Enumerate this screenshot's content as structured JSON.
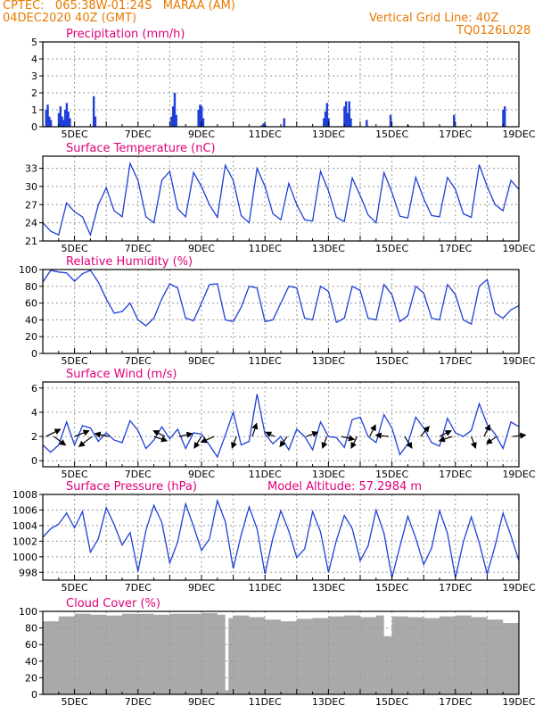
{
  "header": {
    "line1_left": "CPTEC:   065:38W-01:24S   MARAA (AM)",
    "line2_left": "04DEC2020 40Z (GMT)",
    "line2_right": "Vertical Grid Line: 40Z",
    "line3_right": "TQ0126L028"
  },
  "colors": {
    "header": "#e87a00",
    "title": "#e0007a",
    "line": "#1f3fd8",
    "bar": "#1f3fd8",
    "cloud": "#a9a9a9",
    "arrow": "#000000"
  },
  "x_tick_labels": [
    "5DEC",
    "7DEC",
    "9DEC",
    "11DEC",
    "13DEC",
    "15DEC",
    "17DEC",
    "19DEC"
  ],
  "chart_data": [
    {
      "id": "precip",
      "type": "bar",
      "title": "Precipitation (mm/h)",
      "ylim": [
        0,
        5
      ],
      "yticks": [
        0,
        1,
        2,
        3,
        4,
        5
      ],
      "x_range_days": [
        4.0,
        19.0
      ],
      "points": [
        [
          4.1,
          1.0
        ],
        [
          4.15,
          1.3
        ],
        [
          4.2,
          0.6
        ],
        [
          4.25,
          0.4
        ],
        [
          4.5,
          0.8
        ],
        [
          4.55,
          1.2
        ],
        [
          4.6,
          0.6
        ],
        [
          4.65,
          0.4
        ],
        [
          4.7,
          1.0
        ],
        [
          4.75,
          1.4
        ],
        [
          4.8,
          0.9
        ],
        [
          4.85,
          0.5
        ],
        [
          5.6,
          1.8
        ],
        [
          5.65,
          0.6
        ],
        [
          8.05,
          0.6
        ],
        [
          8.1,
          1.2
        ],
        [
          8.15,
          2.0
        ],
        [
          8.2,
          0.7
        ],
        [
          8.9,
          1.0
        ],
        [
          8.95,
          1.3
        ],
        [
          9.0,
          1.2
        ],
        [
          9.05,
          0.5
        ],
        [
          10.9,
          0.1
        ],
        [
          10.95,
          0.2
        ],
        [
          11.0,
          0.1
        ],
        [
          11.6,
          0.5
        ],
        [
          12.85,
          0.5
        ],
        [
          12.9,
          0.9
        ],
        [
          12.95,
          1.4
        ],
        [
          13.0,
          0.5
        ],
        [
          13.5,
          1.2
        ],
        [
          13.55,
          1.5
        ],
        [
          13.6,
          0.8
        ],
        [
          13.65,
          1.5
        ],
        [
          13.7,
          0.5
        ],
        [
          14.2,
          0.4
        ],
        [
          14.95,
          0.7
        ],
        [
          15.5,
          0.1
        ],
        [
          16.95,
          0.7
        ],
        [
          18.5,
          1.0
        ],
        [
          18.55,
          1.2
        ]
      ]
    },
    {
      "id": "temperature",
      "type": "line",
      "title": "Surface Temperature (nC)",
      "ylim": [
        21,
        35
      ],
      "yticks": [
        21,
        24,
        27,
        30,
        33
      ],
      "x_range_days": [
        4.0,
        19.0
      ],
      "x": [
        4.0,
        4.25,
        4.5,
        4.75,
        5.0,
        5.25,
        5.5,
        5.75,
        6.0,
        6.25,
        6.5,
        6.75,
        7.0,
        7.25,
        7.5,
        7.75,
        8.0,
        8.25,
        8.5,
        8.75,
        9.0,
        9.25,
        9.5,
        9.75,
        10.0,
        10.25,
        10.5,
        10.75,
        11.0,
        11.25,
        11.5,
        11.75,
        12.0,
        12.25,
        12.5,
        12.75,
        13.0,
        13.25,
        13.5,
        13.75,
        14.0,
        14.25,
        14.5,
        14.75,
        15.0,
        15.25,
        15.5,
        15.75,
        16.0,
        16.25,
        16.5,
        16.75,
        17.0,
        17.25,
        17.5,
        17.75,
        18.0,
        18.25,
        18.5,
        18.75,
        19.0
      ],
      "y": [
        24.0,
        22.6,
        22.0,
        27.3,
        25.8,
        25.0,
        22.0,
        27.0,
        29.8,
        26.0,
        25.0,
        33.8,
        31.0,
        25.0,
        24.0,
        31.0,
        32.5,
        26.3,
        25.0,
        32.3,
        30.0,
        27.0,
        24.9,
        33.5,
        31.0,
        25.2,
        24.0,
        33.0,
        30.0,
        25.5,
        24.5,
        30.5,
        27.0,
        24.5,
        24.3,
        32.5,
        29.3,
        24.9,
        24.2,
        31.4,
        28.5,
        25.3,
        24.0,
        32.3,
        29.0,
        25.1,
        24.8,
        31.5,
        28.0,
        25.2,
        25.0,
        31.5,
        29.5,
        25.5,
        24.9,
        33.6,
        30.0,
        27.0,
        26.0,
        31.0,
        29.5
      ]
    },
    {
      "id": "humidity",
      "type": "line",
      "title": "Relative Humidity (%)",
      "ylim": [
        0,
        100
      ],
      "yticks": [
        0,
        20,
        40,
        60,
        80,
        100
      ],
      "x_range_days": [
        4.0,
        19.0
      ],
      "x": [
        4.0,
        4.25,
        4.5,
        4.75,
        5.0,
        5.25,
        5.5,
        5.75,
        6.0,
        6.25,
        6.5,
        6.75,
        7.0,
        7.25,
        7.5,
        7.75,
        8.0,
        8.25,
        8.5,
        8.75,
        9.0,
        9.25,
        9.5,
        9.75,
        10.0,
        10.25,
        10.5,
        10.75,
        11.0,
        11.25,
        11.5,
        11.75,
        12.0,
        12.25,
        12.5,
        12.75,
        13.0,
        13.25,
        13.5,
        13.75,
        14.0,
        14.25,
        14.5,
        14.75,
        15.0,
        15.25,
        15.5,
        15.75,
        16.0,
        16.25,
        16.5,
        16.75,
        17.0,
        17.25,
        17.5,
        17.75,
        18.0,
        18.25,
        18.5,
        18.75,
        19.0
      ],
      "y": [
        85,
        99,
        97,
        96,
        86,
        95,
        99,
        85,
        65,
        48,
        50,
        60,
        40,
        33,
        42,
        65,
        83,
        78,
        42,
        39,
        60,
        82,
        83,
        40,
        38,
        55,
        80,
        78,
        38,
        40,
        60,
        80,
        78,
        42,
        40,
        80,
        74,
        37,
        42,
        80,
        75,
        42,
        40,
        82,
        70,
        38,
        45,
        80,
        72,
        42,
        40,
        82,
        70,
        40,
        35,
        80,
        88,
        48,
        42,
        52,
        57
      ]
    },
    {
      "id": "wind",
      "type": "line",
      "title": "Surface Wind (m/s)",
      "ylim": [
        -0.5,
        6.5
      ],
      "yticks": [
        0,
        2,
        4,
        6
      ],
      "x_range_days": [
        4.0,
        19.0
      ],
      "x": [
        4.0,
        4.25,
        4.5,
        4.75,
        5.0,
        5.25,
        5.5,
        5.75,
        6.0,
        6.25,
        6.5,
        6.75,
        7.0,
        7.25,
        7.5,
        7.75,
        8.0,
        8.25,
        8.5,
        8.75,
        9.0,
        9.25,
        9.5,
        9.75,
        10.0,
        10.25,
        10.5,
        10.75,
        11.0,
        11.25,
        11.5,
        11.75,
        12.0,
        12.25,
        12.5,
        12.75,
        13.0,
        13.25,
        13.5,
        13.75,
        14.0,
        14.25,
        14.5,
        14.75,
        15.0,
        15.25,
        15.5,
        15.75,
        16.0,
        16.25,
        16.5,
        16.75,
        17.0,
        17.25,
        17.5,
        17.75,
        18.0,
        18.25,
        18.5,
        18.75,
        19.0
      ],
      "y": [
        1.3,
        0.7,
        1.3,
        3.2,
        1.3,
        2.9,
        2.7,
        1.6,
        2.3,
        1.7,
        1.5,
        3.3,
        2.5,
        1.0,
        1.7,
        2.8,
        1.8,
        2.6,
        1.0,
        2.3,
        2.2,
        1.3,
        0.3,
        2.1,
        4.0,
        1.3,
        1.6,
        5.5,
        2.2,
        1.4,
        2.0,
        0.9,
        2.6,
        2.0,
        0.9,
        3.2,
        2.0,
        1.9,
        1.1,
        3.4,
        3.6,
        2.0,
        1.5,
        3.8,
        2.7,
        0.5,
        1.4,
        3.6,
        2.7,
        1.5,
        1.2,
        3.5,
        2.3,
        2.0,
        2.5,
        4.7,
        3.0,
        2.2,
        1.0,
        3.2,
        2.8
      ],
      "arrows": [
        [
          4.1,
          1.0,
          0.5
        ],
        [
          4.35,
          0.8,
          -0.6
        ],
        [
          5.0,
          1.0,
          0.4
        ],
        [
          5.55,
          -0.9,
          -0.7
        ],
        [
          6.1,
          -1.0,
          0.2
        ],
        [
          7.5,
          0.9,
          -0.3
        ],
        [
          7.85,
          -0.8,
          0.4
        ],
        [
          8.3,
          0.9,
          0.2
        ],
        [
          9.0,
          -0.5,
          -0.8
        ],
        [
          9.4,
          -0.9,
          -0.4
        ],
        [
          10.1,
          -0.3,
          -0.8
        ],
        [
          10.6,
          0.3,
          0.9
        ],
        [
          11.3,
          -0.6,
          0.3
        ],
        [
          11.7,
          -0.5,
          -0.7
        ],
        [
          12.3,
          0.8,
          0.3
        ],
        [
          12.95,
          -0.3,
          -0.8
        ],
        [
          13.4,
          0.9,
          -0.2
        ],
        [
          13.9,
          -0.4,
          -0.8
        ],
        [
          14.3,
          0.4,
          0.8
        ],
        [
          14.9,
          -0.9,
          0.1
        ],
        [
          15.4,
          0.5,
          -0.8
        ],
        [
          15.9,
          0.6,
          0.7
        ],
        [
          16.5,
          0.8,
          0.4
        ],
        [
          16.9,
          -0.9,
          -0.3
        ],
        [
          17.5,
          0.3,
          -0.8
        ],
        [
          17.9,
          0.4,
          0.8
        ],
        [
          18.3,
          -0.7,
          -0.5
        ],
        [
          18.8,
          0.9,
          0.1
        ]
      ]
    },
    {
      "id": "pressure",
      "type": "line",
      "title": "Surface Pressure (hPa)",
      "annotation": "Model Altitude: 57.2984 m",
      "ylim": [
        997,
        1008
      ],
      "yticks": [
        998,
        1000,
        1002,
        1004,
        1006,
        1008
      ],
      "x_range_days": [
        4.0,
        19.0
      ],
      "x": [
        4.0,
        4.25,
        4.5,
        4.75,
        5.0,
        5.25,
        5.5,
        5.75,
        6.0,
        6.25,
        6.5,
        6.75,
        7.0,
        7.25,
        7.5,
        7.75,
        8.0,
        8.25,
        8.5,
        8.75,
        9.0,
        9.25,
        9.5,
        9.75,
        10.0,
        10.25,
        10.5,
        10.75,
        11.0,
        11.25,
        11.5,
        11.75,
        12.0,
        12.25,
        12.5,
        12.75,
        13.0,
        13.25,
        13.5,
        13.75,
        14.0,
        14.25,
        14.5,
        14.75,
        15.0,
        15.25,
        15.5,
        15.75,
        16.0,
        16.25,
        16.5,
        16.75,
        17.0,
        17.25,
        17.5,
        17.75,
        18.0,
        18.25,
        18.5,
        18.75,
        19.0
      ],
      "y": [
        1002.5,
        1003.6,
        1004.2,
        1005.6,
        1003.7,
        1005.8,
        1000.6,
        1002.3,
        1006.3,
        1004.1,
        1001.5,
        1003.1,
        998.1,
        1003.4,
        1006.6,
        1004.4,
        999.2,
        1001.9,
        1006.8,
        1003.9,
        1000.8,
        1002.3,
        1007.2,
        1004.5,
        998.5,
        1002.8,
        1006.4,
        1003.6,
        997.8,
        1002.4,
        1005.9,
        1003.3,
        999.9,
        1001.0,
        1005.8,
        1003.2,
        998.0,
        1002.1,
        1005.3,
        1003.6,
        999.5,
        1001.4,
        1006.0,
        1003.0,
        997.3,
        1001.3,
        1005.2,
        1002.4,
        999.0,
        1001.1,
        1005.9,
        1003.0,
        997.3,
        1001.9,
        1005.1,
        1001.8,
        997.8,
        1001.4,
        1005.6,
        1002.7,
        999.5
      ]
    },
    {
      "id": "cloud",
      "type": "area",
      "title": "Cloud Cover (%)",
      "ylim": [
        0,
        100
      ],
      "yticks": [
        0,
        20,
        40,
        60,
        80,
        100
      ],
      "x_range_days": [
        4.0,
        19.0
      ],
      "x": [
        4.0,
        4.5,
        5.0,
        5.5,
        6.0,
        6.5,
        7.0,
        7.5,
        8.0,
        8.5,
        9.0,
        9.5,
        9.75,
        9.85,
        10.0,
        10.5,
        11.0,
        11.5,
        12.0,
        12.5,
        13.0,
        13.5,
        14.0,
        14.5,
        14.75,
        15.0,
        15.5,
        16.0,
        16.5,
        17.0,
        17.5,
        18.0,
        18.5,
        19.0
      ],
      "y": [
        88,
        94,
        97,
        96,
        95,
        97,
        97,
        96,
        97,
        97,
        98,
        96,
        5,
        92,
        95,
        93,
        90,
        88,
        91,
        92,
        94,
        95,
        93,
        95,
        70,
        94,
        93,
        92,
        94,
        95,
        93,
        90,
        86,
        75
      ]
    }
  ]
}
